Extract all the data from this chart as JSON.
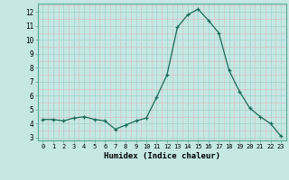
{
  "x": [
    0,
    1,
    2,
    3,
    4,
    5,
    6,
    7,
    8,
    9,
    10,
    11,
    12,
    13,
    14,
    15,
    16,
    17,
    18,
    19,
    20,
    21,
    22,
    23
  ],
  "y": [
    4.3,
    4.3,
    4.2,
    4.4,
    4.5,
    4.3,
    4.2,
    3.6,
    3.9,
    4.2,
    4.4,
    5.9,
    7.5,
    10.9,
    11.8,
    12.2,
    11.4,
    10.5,
    7.8,
    6.3,
    5.1,
    4.5,
    4.0,
    3.1
  ],
  "line_color": "#1a6b5a",
  "marker": "+",
  "marker_size": 3,
  "bg_color": "#c5e8e5",
  "minor_grid_color": "#dbb8b8",
  "major_grid_color": "#a8d4d0",
  "xlabel": "Humidex (Indice chaleur)",
  "ylim": [
    2.8,
    12.6
  ],
  "xlim": [
    -0.5,
    23.5
  ],
  "yticks": [
    3,
    4,
    5,
    6,
    7,
    8,
    9,
    10,
    11,
    12
  ],
  "xticks": [
    0,
    1,
    2,
    3,
    4,
    5,
    6,
    7,
    8,
    9,
    10,
    11,
    12,
    13,
    14,
    15,
    16,
    17,
    18,
    19,
    20,
    21,
    22,
    23
  ]
}
